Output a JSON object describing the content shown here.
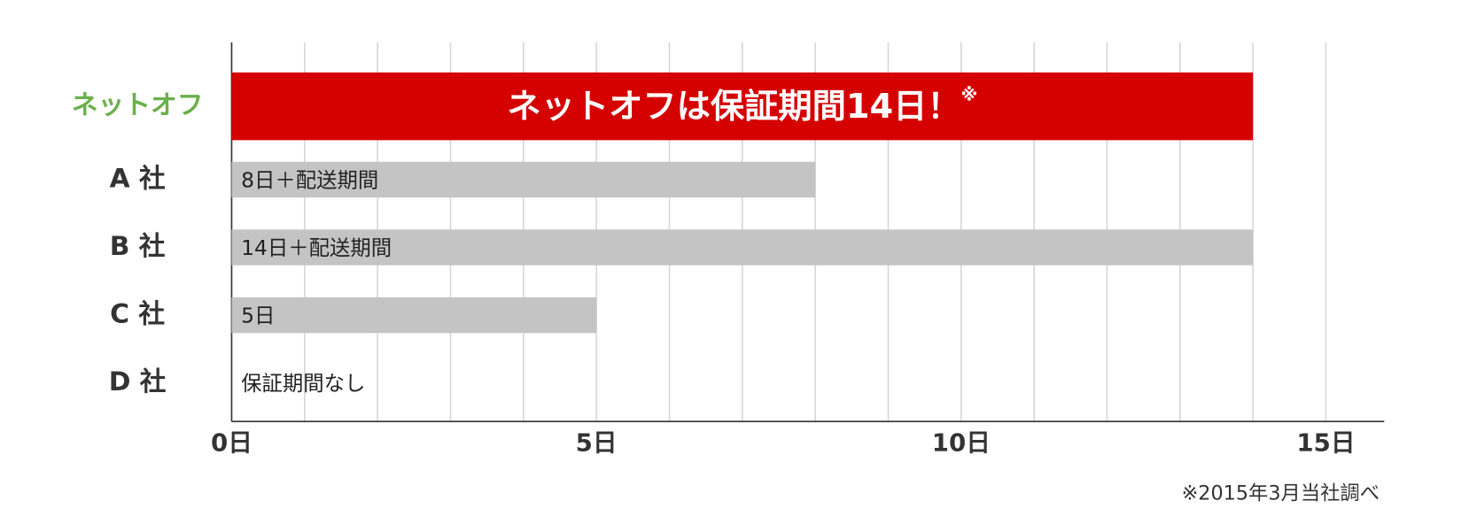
{
  "chart_data": {
    "type": "hbar",
    "categories": [
      "ネットオフ",
      "A 社",
      "B 社",
      "C 社",
      "D 社"
    ],
    "values": [
      14,
      8,
      14,
      5,
      0
    ],
    "value_labels": [
      "ネットオフは保証期間14日！",
      "8日＋配送期間",
      "14日＋配送期間",
      "5日",
      "保証期間なし"
    ],
    "value_label_note": "※",
    "highlight_index": 0,
    "color": "#c4c4c4",
    "highlight_color": "#d50000",
    "highlight_label_color": "#6ab04c",
    "xlim": [
      0,
      15.8
    ],
    "xticks": [
      {
        "value": 0,
        "label": "0日"
      },
      {
        "value": 5,
        "label": "5日"
      },
      {
        "value": 10,
        "label": "10日"
      },
      {
        "value": 15,
        "label": "15日"
      }
    ],
    "minor_xticks": [
      1,
      2,
      3,
      4,
      6,
      7,
      8,
      9,
      11,
      12,
      13,
      14
    ],
    "grid": true,
    "footnote": "※2015年3月当社調べ"
  }
}
